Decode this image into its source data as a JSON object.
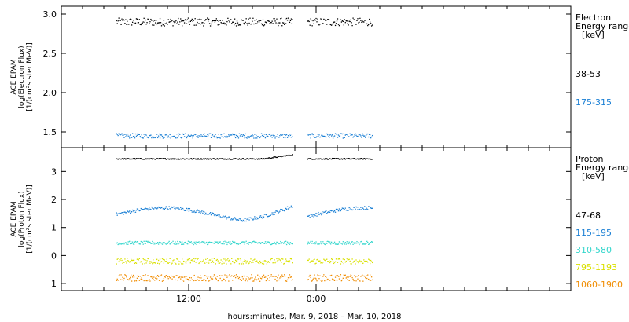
{
  "chart_data": [
    {
      "type": "scatter",
      "panel": "electron",
      "ylabel_lines": [
        "ACE EPAM",
        "log(Electron Flux)",
        "[1/(cm²s ster MeV)]"
      ],
      "ylim": [
        1.3,
        3.1
      ],
      "yticks": [
        1.5,
        2.0,
        2.5,
        3.0
      ],
      "ytick_labels": [
        "1.5",
        "2.0",
        "2.5",
        "3.0"
      ],
      "legend_title_lines": [
        "Electron",
        "Energy range",
        "[keV]"
      ],
      "grid": false,
      "series": [
        {
          "name": "38-53",
          "color": "#000000",
          "level": 2.9,
          "spread": 0.05
        },
        {
          "name": "175-315",
          "color": "#1a7fd4",
          "level": 1.45,
          "spread": 0.03
        }
      ]
    },
    {
      "type": "scatter",
      "panel": "proton",
      "ylabel_lines": [
        "ACE EPAM",
        "log(Proton Flux)",
        "[1/(cm²s ster MeV)]"
      ],
      "ylim": [
        -1.25,
        3.85
      ],
      "yticks": [
        -1,
        0,
        1,
        2,
        3
      ],
      "ytick_labels": [
        "−1",
        "0",
        "1",
        "2",
        "3"
      ],
      "legend_title_lines": [
        "Proton",
        "Energy range",
        "[keV]"
      ],
      "grid": false,
      "series": [
        {
          "name": "47-68",
          "color": "#000000",
          "level": 3.45,
          "spread": 0.02
        },
        {
          "name": "115-195",
          "color": "#1a7fd4",
          "level": 1.45,
          "spread": 0.06
        },
        {
          "name": "310-580",
          "color": "#33d6cc",
          "level": 0.45,
          "spread": 0.06
        },
        {
          "name": "795-1193",
          "color": "#d9e000",
          "level": -0.2,
          "spread": 0.1
        },
        {
          "name": "1060-1900",
          "color": "#f08c00",
          "level": -0.8,
          "spread": 0.12
        }
      ]
    }
  ],
  "x_axis": {
    "start_hour": 0,
    "end_hour": 48,
    "tick_labels": [
      {
        "hour": 12,
        "label": "12:00"
      },
      {
        "hour": 24,
        "label": "0:00"
      }
    ],
    "minor_every_hours": 2,
    "data_segments": [
      [
        5.2,
        21.8
      ],
      [
        23.2,
        29.3
      ]
    ],
    "xlabel": "hours:minutes, Mar.  9, 2018 – Mar. 10, 2018"
  }
}
